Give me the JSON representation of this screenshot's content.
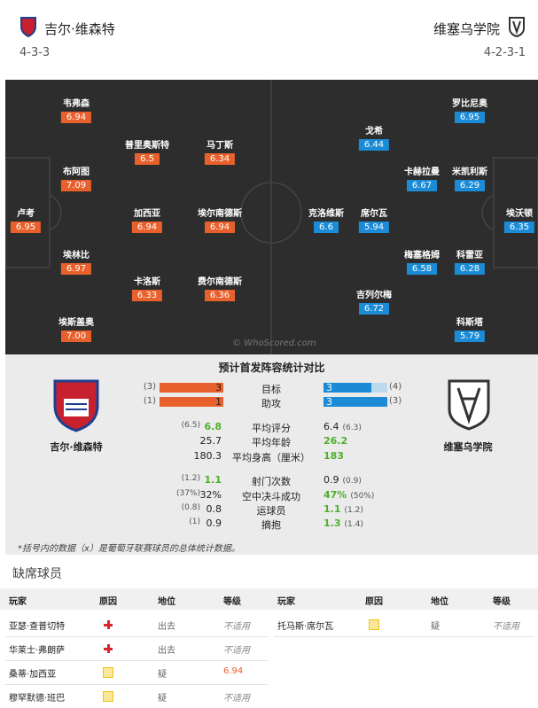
{
  "header": {
    "home": {
      "name": "吉尔·维森特",
      "formation": "4-3-3"
    },
    "away": {
      "name": "维塞乌学院",
      "formation": "4-2-3-1"
    }
  },
  "pitch": {
    "home_players": [
      {
        "name": "卢考",
        "rating": "6.95"
      },
      {
        "name": "韦弗森",
        "rating": "6.94"
      },
      {
        "name": "布阿图",
        "rating": "7.09"
      },
      {
        "name": "埃林比",
        "rating": "6.97"
      },
      {
        "name": "埃斯盖奥",
        "rating": "7.00"
      },
      {
        "name": "普里奥斯特",
        "rating": "6.5"
      },
      {
        "name": "加西亚",
        "rating": "6.94"
      },
      {
        "name": "卡洛斯",
        "rating": "6.33"
      },
      {
        "name": "马丁斯",
        "rating": "6.34"
      },
      {
        "name": "埃尔南德斯",
        "rating": "6.94"
      },
      {
        "name": "费尔南德斯",
        "rating": "6.36"
      }
    ],
    "away_players": [
      {
        "name": "戈希",
        "rating": "6.44"
      },
      {
        "name": "罗比尼奥",
        "rating": "6.95"
      },
      {
        "name": "卡赫拉曼",
        "rating": "6.67"
      },
      {
        "name": "米凯利斯",
        "rating": "6.29"
      },
      {
        "name": "克洛维斯",
        "rating": "6.6"
      },
      {
        "name": "席尔瓦",
        "rating": "5.94"
      },
      {
        "name": "埃沃顿",
        "rating": "6.35"
      },
      {
        "name": "梅塞格姆",
        "rating": "6.58"
      },
      {
        "name": "科雷亚",
        "rating": "6.28"
      },
      {
        "name": "吉列尔梅",
        "rating": "6.72"
      },
      {
        "name": "科斯塔",
        "rating": "5.79"
      }
    ],
    "watermark": "© WhoScored.com"
  },
  "comparison": {
    "title": "预计首发阵容统计对比",
    "home_team": "吉尔·维森特",
    "away_team": "维塞乌学院",
    "rows": [
      {
        "label": "目标",
        "home": "3",
        "home_league": "(3)",
        "away": "3",
        "away_league": "(4)",
        "bars": true
      },
      {
        "label": "助攻",
        "home": "1",
        "home_league": "(1)",
        "away": "3",
        "away_league": "(3)",
        "bars": true
      },
      {
        "label": "平均评分",
        "home": "6.8",
        "home_league": "(6.5)",
        "away": "6.4",
        "away_league": "(6.3)"
      },
      {
        "label": "平均年龄",
        "home": "25.7",
        "away": "26.2"
      },
      {
        "label": "平均身高（厘米）",
        "home": "180.3",
        "away": "183"
      },
      {
        "label": "射门次数",
        "home": "1.1",
        "home_league": "(1.2)",
        "away": "0.9",
        "away_league": "(0.9)"
      },
      {
        "label": "空中决斗成功",
        "home": "32%",
        "home_league": "(37%)",
        "away": "47%",
        "away_league": "(50%)"
      },
      {
        "label": "运球员",
        "home": "0.8",
        "home_league": "(0.8)",
        "away": "1.1",
        "away_league": "(1.2)"
      },
      {
        "label": "摘抱",
        "home": "0.9",
        "home_league": "(1)",
        "away": "1.3",
        "away_league": "(1.4)"
      }
    ],
    "note": "*括号内的数据（x）是葡萄牙联赛球员的总体统计数据。"
  },
  "missing": {
    "title": "缺席球员",
    "columns": [
      "玩家",
      "原因",
      "地位",
      "等级"
    ],
    "left": [
      {
        "player": "亚瑟·查普切特",
        "reason": "red",
        "status": "出去",
        "rating": "不适用"
      },
      {
        "player": "华莱士·弗朗萨",
        "reason": "red",
        "status": "出去",
        "rating": "不适用"
      },
      {
        "player": "桑蒂·加西亚",
        "reason": "yellow",
        "status": "疑",
        "rating": "6.94"
      },
      {
        "player": "穆罕默德·班巴",
        "reason": "yellow",
        "status": "疑",
        "rating": "不适用"
      }
    ],
    "right": [
      {
        "player": "托马斯·席尔瓦",
        "reason": "yellow",
        "status": "疑",
        "rating": "不适用"
      }
    ]
  }
}
